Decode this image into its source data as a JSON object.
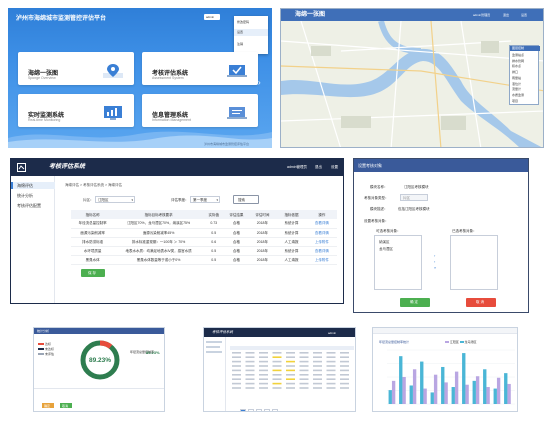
{
  "portal": {
    "title": "泸州市海绵城市监测管控评估平台",
    "user": "admin",
    "dropdown": [
      "修改密码",
      "设置",
      "注销"
    ],
    "tiles": [
      {
        "title": "海绵一张图",
        "subtitle": "Sponge Overview"
      },
      {
        "title": "考核评估系统",
        "subtitle": "Assessment System"
      },
      {
        "title": "实时监测系统",
        "subtitle": "Real-time Monitoring"
      },
      {
        "title": "信息管理系统",
        "subtitle": "Information Management"
      }
    ],
    "footer": "泸州市海绵城市监测管控评估平台"
  },
  "map": {
    "title": "海绵一张图",
    "user": "admin管理员",
    "buttons": [
      "退出",
      "设置"
    ],
    "layer_panel_title": "图层控制",
    "layers": [
      "监测站点",
      "排水管网",
      "积水点",
      "排口",
      "雨量站",
      "液位计",
      "流量计",
      "水质监测",
      "项目"
    ]
  },
  "assess": {
    "title": "考核评估系统",
    "user": "admin管理员",
    "buttons": [
      "退出",
      "设置"
    ],
    "sidebar": [
      "海绵评估",
      "统计分析",
      "考核评估配置"
    ],
    "breadcrumb": [
      "海绵评估",
      "考核评估系统",
      "海绵评估"
    ],
    "filter": {
      "label1": "片区：",
      "value1": "江阳区",
      "label2": "评估季度：",
      "value2": "第一季度",
      "search": "搜索"
    },
    "columns": [
      "指标名称",
      "指标目标考核要求",
      "实际值",
      "评估结果",
      "评估时间",
      "指标依据",
      "操作"
    ],
    "rows": [
      [
        "年径流总量控制率",
        "江阳区70%，龙马潭区70%，纳溪区75%",
        "0.73",
        "合格",
        "2018年",
        "系统计算",
        "查看详情"
      ],
      [
        "面源污染削减率",
        "面源污染削减率45%",
        "0.5",
        "合格",
        "2018年",
        "系统计算",
        "查看详情"
      ],
      [
        "排水防涝标准",
        "排水标准重现期：一100年 ＞ 70%",
        "0.6",
        "合格",
        "2018年",
        "人工填报",
        "上传附件"
      ],
      [
        "水环境质量",
        "地表水水质：均满足地表水Ⅳ类，感官水质",
        "0.5",
        "合格",
        "2018年",
        "系统计算",
        "查看详情"
      ],
      [
        "黑臭水体",
        "黑臭水体数量等于或小于0%",
        "0.5",
        "合格",
        "2018年",
        "人工填报",
        "上传附件"
      ]
    ],
    "save": "保 存"
  },
  "dialog": {
    "title": "设置考核对象",
    "f1_label": "模块名称：",
    "f1_value": "江阳区考核模块",
    "f2_label": "考核对象类型：",
    "f2_value": "片区",
    "f3_label": "模块描述：",
    "f3_value": "包括江阳区考核模块",
    "f4_label": "设置考核对象：",
    "left_title": "可选考核对象：",
    "left_items": [
      "纳溪区",
      "龙马潭区"
    ],
    "right_title": "已选考核对象：",
    "ok": "确 定",
    "cancel": "取 消"
  },
  "stats": {
    "title": "统计分析",
    "percent": "89.23%",
    "label": "年径流总量控制率",
    "percent_value": 89.23,
    "legend": [
      "达标",
      "未达标",
      "未评估"
    ],
    "b1": "确定",
    "b2": "取消"
  },
  "cfg": {
    "title": "考核评估系统",
    "user": "admin",
    "pages": [
      "1",
      "2",
      "3",
      "4",
      "5"
    ]
  },
  "barchart": {
    "title": "年径流总量控制率统计",
    "legend": [
      "江阳区",
      "龙马潭区",
      "纳溪区"
    ]
  },
  "colors": {
    "blue": "#3a7fd5",
    "green": "#4caf50",
    "red": "#e74c3c",
    "navy": "#1c2b4a"
  },
  "chart_data": {
    "type": "bar",
    "categories": [
      "1",
      "2",
      "3",
      "4",
      "5",
      "6",
      "7",
      "8",
      "9",
      "10",
      "11",
      "12"
    ],
    "series": [
      {
        "name": "江阳区",
        "values": [
          18,
          62,
          24,
          55,
          15,
          48,
          22,
          66,
          30,
          45,
          20,
          40
        ]
      },
      {
        "name": "龙马潭区",
        "values": [
          30,
          35,
          45,
          20,
          38,
          28,
          42,
          25,
          36,
          22,
          34,
          26
        ]
      }
    ],
    "ylim": [
      0,
      70
    ]
  }
}
